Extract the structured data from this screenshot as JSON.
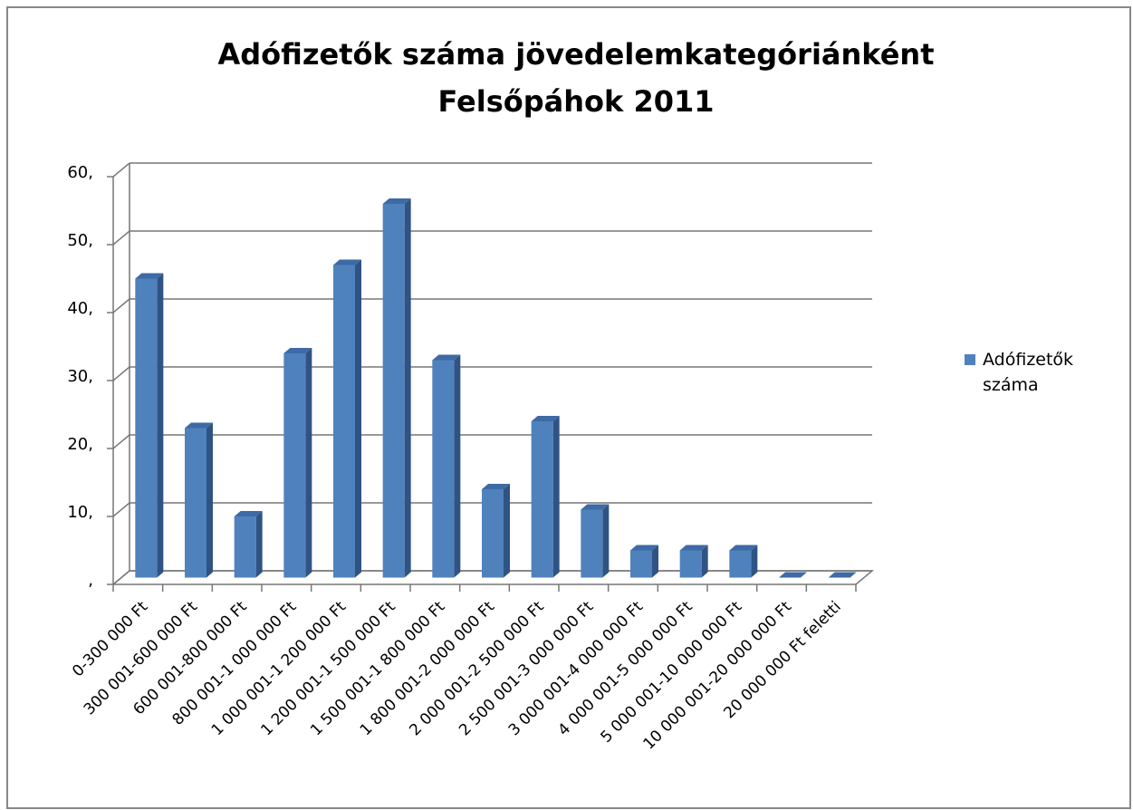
{
  "chart_data": {
    "type": "bar3d",
    "title": [
      "Adófizetők száma jövedelemkategóriánként",
      "Felsőpáhok 2011"
    ],
    "categories": [
      "0-300 000 Ft",
      "300 001-600 000 Ft",
      "600 001-800 000 Ft",
      "800 001-1 000 000 Ft",
      "1 000 001-1 200 000 Ft",
      "1 200 001-1 500 000 Ft",
      "1 500 001-1 800 000 Ft",
      "1 800 001-2 000 000 Ft",
      "2 000 001-2 500 000 Ft",
      "2 500 001-3 000 000 Ft",
      "3 000 001-4 000 000 Ft",
      "4 000 001-5 000 000 Ft",
      "5 000 001-10 000 000 Ft",
      "10 000 001-20 000 000 Ft",
      "20 000 000 Ft feletti"
    ],
    "series": [
      {
        "name": "Adófizetők száma",
        "color": "#4f81bd",
        "values": [
          44,
          22,
          9,
          33,
          46,
          55,
          32,
          13,
          23,
          10,
          4,
          4,
          4,
          0,
          0
        ]
      }
    ],
    "ylim": [
      0,
      60
    ],
    "yticks": [
      {
        "value": 0,
        "label": ","
      },
      {
        "value": 10,
        "label": "10,"
      },
      {
        "value": 20,
        "label": "20,"
      },
      {
        "value": 30,
        "label": "30,"
      },
      {
        "value": 40,
        "label": "40,"
      },
      {
        "value": 50,
        "label": "50,"
      },
      {
        "value": 60,
        "label": "60,"
      }
    ],
    "grid": true,
    "legend": "right"
  }
}
